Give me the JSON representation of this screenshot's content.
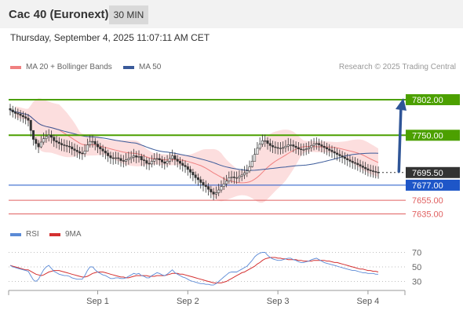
{
  "header": {
    "title": "Cac 40 (Euronext)",
    "timeframe": "30 MIN"
  },
  "timestamp": "Thursday, September 4, 2025 11:07:11 AM CET",
  "copyright": "Research © 2025 Trading Central",
  "colors": {
    "resistance": "#4ca000",
    "support_blue": "#1e56c8",
    "support_red": "#e06060",
    "candle": "#333333",
    "bollinger_fill": "#fbd3d3",
    "ma20": "#f08080",
    "ma50": "#3a5a9a",
    "rsi": "#5b8ad6",
    "rsi_ma": "#d43030",
    "arrow": "#2f5597",
    "current_price_tag": "#333333"
  },
  "chart_data": [
    {
      "type": "candlestick",
      "title": "Cac 40 (Euronext)",
      "timeframe": "30 MIN",
      "legend": [
        {
          "name": "MA 20 + Bollinger Bands",
          "color": "#f08080"
        },
        {
          "name": "MA 50",
          "color": "#3a5a9a"
        }
      ],
      "legend_position": "top-left",
      "ylim": [
        7630,
        7810
      ],
      "x_tick_labels": [
        "Sep 1",
        "Sep 2",
        "Sep 3",
        "Sep 4"
      ],
      "x_tick_index": [
        34,
        69,
        104,
        139
      ],
      "current_price": {
        "label": "7695.50",
        "value": 7695.5
      },
      "levels": [
        {
          "label": "7802.00",
          "value": 7802,
          "role": "resistance",
          "color": "#4ca000"
        },
        {
          "label": "7750.00",
          "value": 7750,
          "role": "resistance",
          "color": "#4ca000"
        },
        {
          "label": "7677.00",
          "value": 7677,
          "role": "support",
          "color": "#1e56c8"
        },
        {
          "label": "7655.00",
          "value": 7655,
          "role": "support",
          "color": "#e06060"
        },
        {
          "label": "7635.00",
          "value": 7635,
          "role": "support",
          "color": "#e06060"
        }
      ],
      "scenario_arrow": {
        "from": {
          "index": 151,
          "value": 7697
        },
        "to": {
          "index": 163,
          "value": 7802
        }
      },
      "close": [
        7787,
        7784,
        7782,
        7781,
        7779,
        7777,
        7775,
        7772,
        7757,
        7744,
        7738,
        7733,
        7740,
        7745,
        7748,
        7750,
        7747,
        7742,
        7740,
        7738,
        7736,
        7735,
        7734,
        7733,
        7730,
        7728,
        7726,
        7724,
        7723,
        7727,
        7736,
        7741,
        7741,
        7737,
        7733,
        7730,
        7727,
        7724,
        7720,
        7717,
        7716,
        7717,
        7716,
        7713,
        7712,
        7714,
        7716,
        7718,
        7720,
        7718,
        7719,
        7714,
        7713,
        7709,
        7708,
        7712,
        7715,
        7716,
        7714,
        7711,
        7709,
        7712,
        7716,
        7720,
        7715,
        7712,
        7709,
        7706,
        7704,
        7700,
        7696,
        7692,
        7688,
        7685,
        7681,
        7677,
        7675,
        7671,
        7667,
        7664,
        7666,
        7670,
        7675,
        7679,
        7683,
        7688,
        7689,
        7688,
        7688,
        7690,
        7692,
        7695,
        7698,
        7704,
        7712,
        7722,
        7731,
        7737,
        7742,
        7742,
        7738,
        7735,
        7733,
        7732,
        7731,
        7731,
        7732,
        7734,
        7736,
        7736,
        7734,
        7732,
        7730,
        7729,
        7729,
        7730,
        7732,
        7735,
        7737,
        7738,
        7736,
        7734,
        7732,
        7730,
        7728,
        7726,
        7724,
        7722,
        7720,
        7718,
        7716,
        7714,
        7712,
        7710,
        7709,
        7707,
        7705,
        7703,
        7701,
        7699,
        7698,
        7697,
        7696,
        7695.5
      ],
      "high": [
        7796,
        7793,
        7791,
        7789,
        7787,
        7785,
        7783,
        7781,
        7767,
        7753,
        7747,
        7743,
        7749,
        7754,
        7757,
        7759,
        7757,
        7751,
        7749,
        7747,
        7745,
        7744,
        7743,
        7742,
        7740,
        7738,
        7736,
        7733,
        7733,
        7737,
        7745,
        7750,
        7750,
        7746,
        7742,
        7739,
        7736,
        7733,
        7729,
        7726,
        7725,
        7726,
        7725,
        7722,
        7721,
        7724,
        7726,
        7727,
        7730,
        7727,
        7728,
        7723,
        7722,
        7718,
        7717,
        7721,
        7724,
        7725,
        7723,
        7720,
        7718,
        7721,
        7725,
        7729,
        7725,
        7721,
        7718,
        7715,
        7713,
        7709,
        7705,
        7701,
        7697,
        7694,
        7690,
        7686,
        7684,
        7680,
        7676,
        7673,
        7675,
        7679,
        7684,
        7689,
        7692,
        7697,
        7698,
        7697,
        7697,
        7699,
        7701,
        7705,
        7707,
        7713,
        7721,
        7731,
        7740,
        7747,
        7751,
        7751,
        7747,
        7745,
        7742,
        7741,
        7740,
        7740,
        7741,
        7743,
        7746,
        7745,
        7743,
        7741,
        7740,
        7738,
        7738,
        7739,
        7741,
        7744,
        7746,
        7747,
        7745,
        7743,
        7741,
        7739,
        7737,
        7735,
        7733,
        7731,
        7729,
        7727,
        7725,
        7723,
        7721,
        7719,
        7718,
        7716,
        7714,
        7712,
        7711,
        7708,
        7707,
        7706,
        7705,
        7704.5
      ],
      "low": [
        7779,
        7776,
        7774,
        7772,
        7770,
        7768,
        7766,
        7763,
        7748,
        7735,
        7729,
        7724,
        7731,
        7736,
        7739,
        7741,
        7738,
        7733,
        7731,
        7729,
        7727,
        7726,
        7725,
        7724,
        7721,
        7719,
        7717,
        7715,
        7714,
        7718,
        7727,
        7732,
        7732,
        7728,
        7724,
        7721,
        7718,
        7715,
        7711,
        7708,
        7707,
        7708,
        7707,
        7704,
        7703,
        7705,
        7707,
        7709,
        7711,
        7709,
        7710,
        7705,
        7704,
        7700,
        7699,
        7703,
        7706,
        7707,
        7705,
        7702,
        7700,
        7703,
        7707,
        7711,
        7706,
        7703,
        7700,
        7697,
        7695,
        7691,
        7687,
        7683,
        7679,
        7676,
        7672,
        7668,
        7666,
        7662,
        7658,
        7655,
        7657,
        7661,
        7666,
        7670,
        7674,
        7679,
        7680,
        7679,
        7679,
        7681,
        7683,
        7686,
        7689,
        7695,
        7703,
        7713,
        7722,
        7728,
        7733,
        7733,
        7729,
        7726,
        7724,
        7723,
        7722,
        7722,
        7723,
        7725,
        7727,
        7727,
        7725,
        7723,
        7721,
        7720,
        7720,
        7721,
        7723,
        7726,
        7728,
        7729,
        7727,
        7725,
        7723,
        7721,
        7719,
        7717,
        7715,
        7713,
        7711,
        7709,
        7707,
        7705,
        7703,
        7701,
        7700,
        7698,
        7696,
        7694,
        7692,
        7690,
        7689,
        7688,
        7687,
        7686.5
      ]
    },
    {
      "type": "line",
      "legend": [
        {
          "name": "RSI",
          "color": "#5b8ad6"
        },
        {
          "name": "9MA",
          "color": "#d43030"
        }
      ],
      "legend_position": "top-left",
      "ylim": [
        20,
        80
      ],
      "y_tick_labels": [
        "70",
        "50",
        "30"
      ],
      "y_ticks": [
        70,
        50,
        30
      ],
      "series": [
        {
          "name": "RSI",
          "values": [
            52,
            50,
            49,
            48,
            47,
            46,
            45,
            44,
            38,
            32,
            30,
            33,
            40,
            46,
            50,
            52,
            48,
            44,
            42,
            40,
            39,
            38,
            38,
            37,
            35,
            34,
            33,
            33,
            33,
            38,
            45,
            50,
            50,
            46,
            43,
            41,
            39,
            38,
            36,
            34,
            34,
            35,
            35,
            34,
            34,
            35,
            37,
            39,
            41,
            40,
            41,
            38,
            37,
            35,
            35,
            38,
            40,
            42,
            41,
            39,
            38,
            40,
            43,
            46,
            42,
            40,
            38,
            36,
            35,
            33,
            31,
            30,
            29,
            28,
            27,
            27,
            26,
            26,
            25,
            25,
            27,
            30,
            33,
            36,
            39,
            42,
            43,
            43,
            43,
            45,
            47,
            49,
            51,
            55,
            59,
            64,
            67,
            69,
            70,
            70,
            66,
            63,
            61,
            60,
            59,
            59,
            60,
            61,
            62,
            62,
            60,
            59,
            57,
            56,
            56,
            57,
            58,
            60,
            61,
            62,
            60,
            58,
            56,
            55,
            54,
            53,
            52,
            51,
            50,
            49,
            48,
            47,
            46,
            45,
            45,
            44,
            43,
            42,
            42,
            41,
            41,
            41,
            40,
            40
          ]
        },
        {
          "name": "9MA",
          "values": [
            52,
            51,
            50,
            49,
            48,
            47,
            46,
            46,
            44,
            42,
            40,
            39,
            38,
            39,
            41,
            43,
            44,
            45,
            45,
            45,
            44,
            43,
            42,
            41,
            40,
            39,
            38,
            37,
            36,
            36,
            37,
            39,
            41,
            42,
            43,
            43,
            43,
            42,
            41,
            40,
            39,
            38,
            37,
            36,
            36,
            35,
            35,
            36,
            37,
            38,
            38,
            38,
            38,
            38,
            37,
            37,
            37,
            38,
            38,
            38,
            38,
            39,
            40,
            41,
            41,
            41,
            40,
            40,
            39,
            38,
            37,
            36,
            35,
            34,
            33,
            32,
            31,
            30,
            29,
            28,
            28,
            28,
            28,
            29,
            30,
            32,
            34,
            36,
            38,
            40,
            42,
            43,
            45,
            47,
            49,
            51,
            54,
            56,
            59,
            61,
            62,
            63,
            63,
            63,
            62,
            62,
            61,
            61,
            60,
            60,
            60,
            60,
            59,
            59,
            58,
            58,
            58,
            58,
            59,
            59,
            59,
            59,
            59,
            58,
            58,
            57,
            56,
            56,
            55,
            54,
            53,
            52,
            51,
            50,
            49,
            48,
            47,
            47,
            46,
            45,
            45,
            44,
            44,
            43
          ]
        }
      ]
    }
  ]
}
